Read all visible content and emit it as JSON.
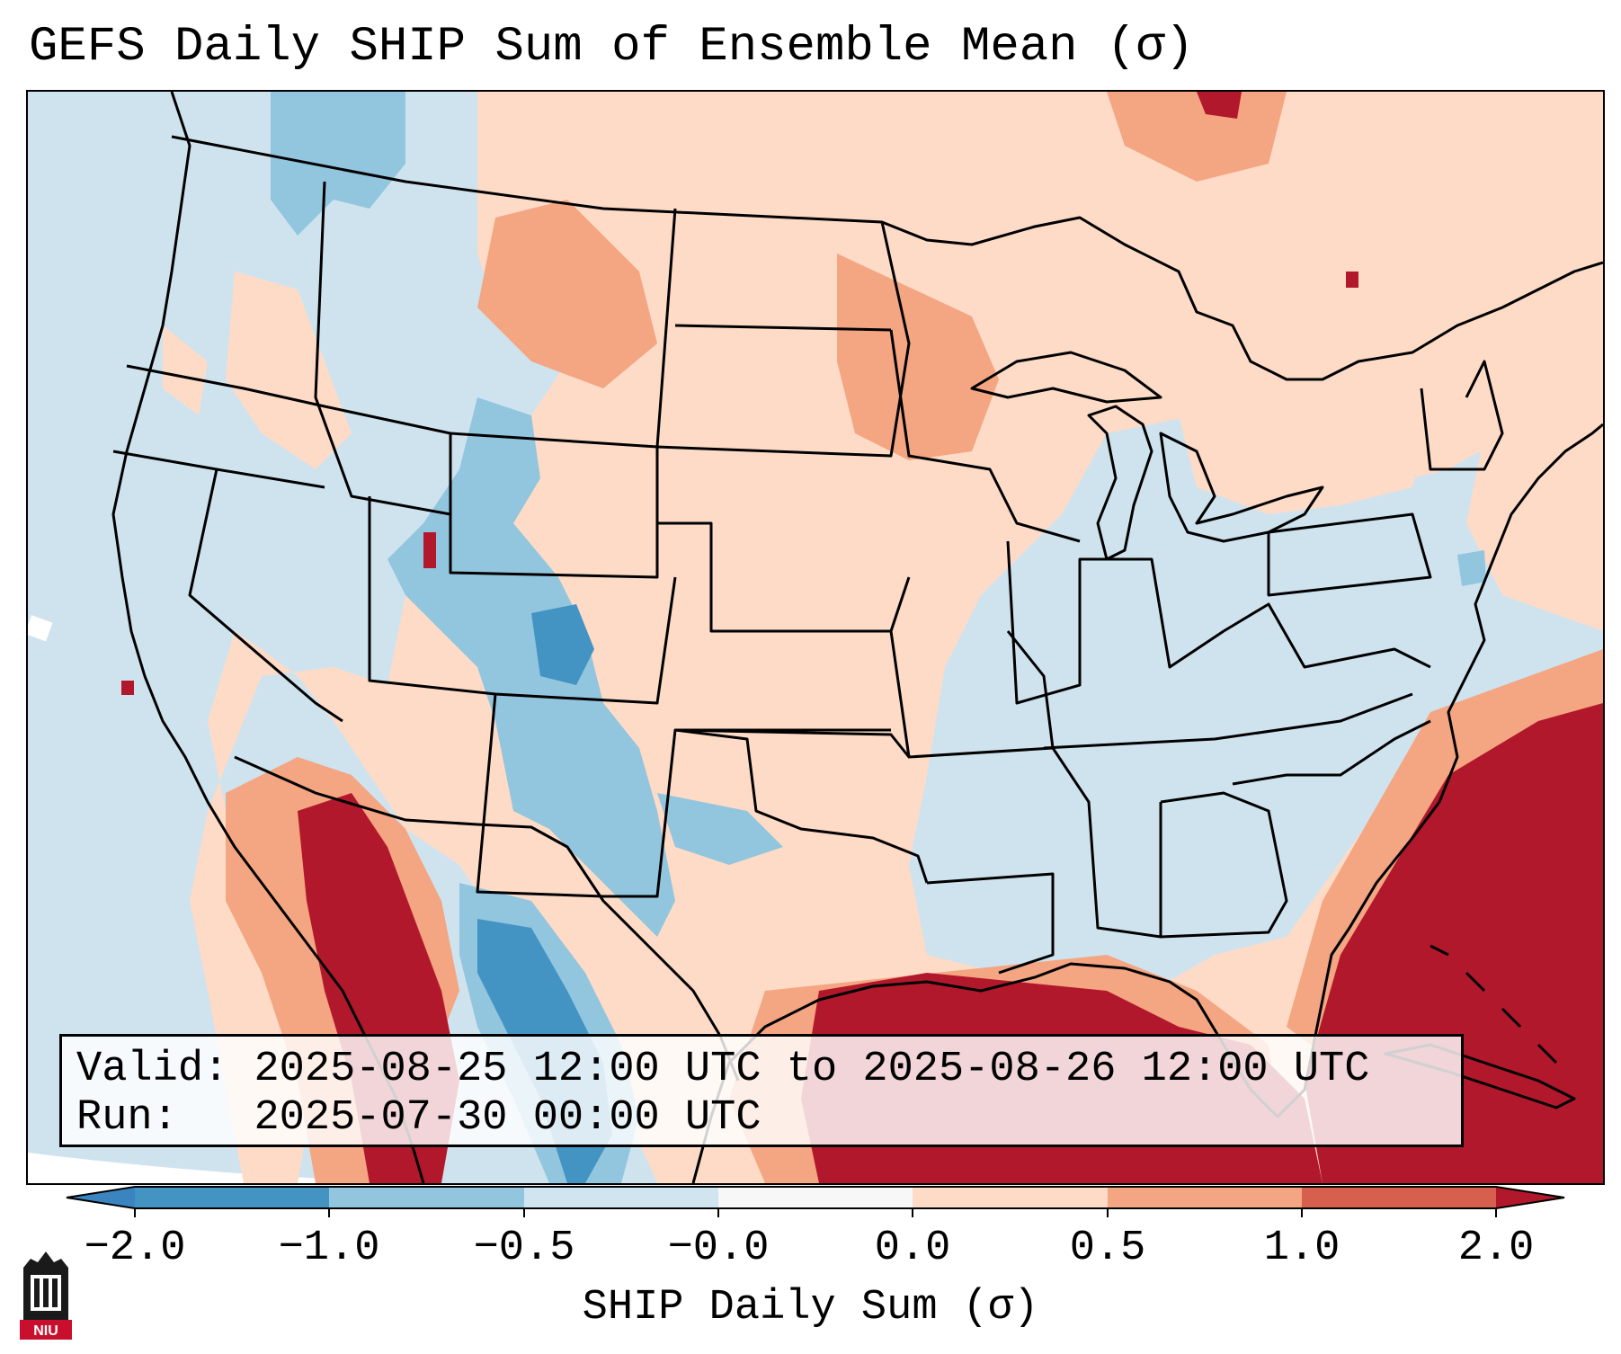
{
  "title": "GEFS Daily SHIP Sum of Ensemble Mean (σ)",
  "info": {
    "valid_label": "Valid:",
    "valid_value": "2025-08-25 12:00 UTC to 2025-08-26 12:00 UTC",
    "run_label": "Run:",
    "run_value": "2025-07-30 00:00 UTC"
  },
  "colorbar": {
    "label": "SHIP Daily Sum (σ)",
    "tick_labels": [
      "−2.0",
      "−1.0",
      "−0.5",
      "−0.0",
      "0.0",
      "0.5",
      "1.0",
      "2.0"
    ],
    "bins": [
      {
        "range": "< -2.0",
        "color": "#3a85c0"
      },
      {
        "range": "-2.0 to -1.0",
        "color": "#4393c3"
      },
      {
        "range": "-1.0 to -0.5",
        "color": "#92c5de"
      },
      {
        "range": "-0.5 to -0.0",
        "color": "#d1e5f0"
      },
      {
        "range": "-0.0 to 0.0",
        "color": "#f7f7f7"
      },
      {
        "range": "0.0 to 0.5",
        "color": "#fddbc7"
      },
      {
        "range": "0.5 to 1.0",
        "color": "#f4a582"
      },
      {
        "range": "1.0 to 2.0",
        "color": "#d6604d"
      },
      {
        "range": "> 2.0",
        "color": "#b2182b"
      }
    ]
  },
  "logo_text": "NIU"
}
